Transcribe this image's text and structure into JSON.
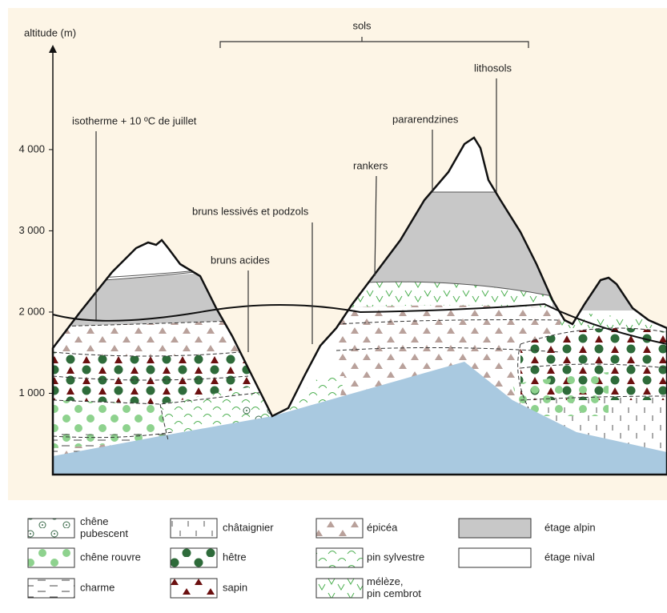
{
  "axis": {
    "label": "altitude (m)",
    "ylim": [
      0,
      5250
    ],
    "ticks": [
      {
        "value": 1000,
        "label": "1 000"
      },
      {
        "value": 2000,
        "label": "2 000"
      },
      {
        "value": 3000,
        "label": "3 000"
      },
      {
        "value": 4000,
        "label": "4 000"
      }
    ]
  },
  "annotations": {
    "sols": "sols",
    "isotherm": "isotherme + 10 ºC de juillet",
    "bruns_lessives": "bruns lessivés et podzols",
    "bruns_acides": "bruns acides",
    "rankers": "rankers",
    "pararendzines": "pararendzines",
    "lithosols": "lithosols"
  },
  "legend": [
    {
      "lines": [
        "chêne",
        "pubescent"
      ]
    },
    {
      "lines": [
        "châtaignier"
      ]
    },
    {
      "lines": [
        "épicéa"
      ]
    },
    {
      "lines": [
        "étage alpin"
      ]
    },
    {
      "lines": [
        "chêne rouvre"
      ]
    },
    {
      "lines": [
        "hêtre"
      ]
    },
    {
      "lines": [
        "pin sylvestre"
      ]
    },
    {
      "lines": [
        "étage nival"
      ]
    },
    {
      "lines": [
        "charme"
      ]
    },
    {
      "lines": [
        "sapin"
      ]
    },
    {
      "lines": [
        "mélèze,",
        "pin cembrot"
      ]
    }
  ]
}
